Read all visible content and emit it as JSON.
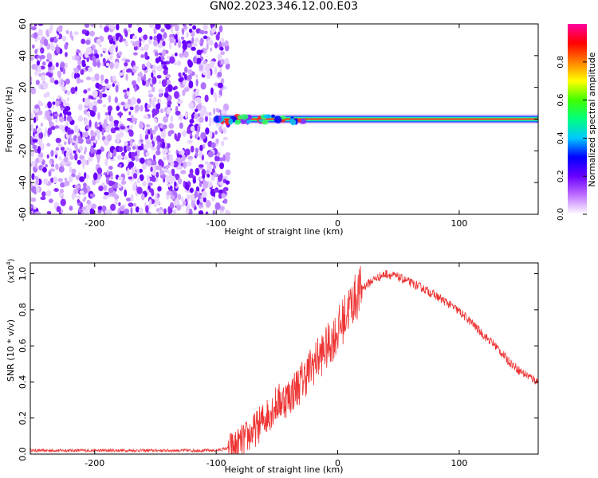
{
  "title": "GN02.2023.346.12.00.E03",
  "chart_data": [
    {
      "type": "heatmap",
      "xlabel": "Height of straight line (km)",
      "ylabel": "Frequency (Hz)",
      "xlim": [
        -253,
        165
      ],
      "ylim": [
        -60,
        60
      ],
      "xticks": [
        -200,
        -100,
        0,
        100
      ],
      "yticks": [
        -60,
        -40,
        -20,
        0,
        20,
        40,
        60
      ],
      "noise_region_x": [
        -253,
        -90
      ],
      "tone_frequency": 0,
      "tone_start_x": -100,
      "colorbar": {
        "label": "Normalized spectral amplitude",
        "range": [
          0,
          1
        ],
        "ticks": [
          0.0,
          0.2,
          0.4,
          0.6,
          0.8
        ],
        "colors": [
          "#ffffff",
          "#c070ff",
          "#6a00ff",
          "#0000ff",
          "#00c8ff",
          "#00ff80",
          "#40ff00",
          "#ffff00",
          "#ff8000",
          "#ff0000",
          "#ff00a0"
        ]
      }
    },
    {
      "type": "line",
      "xlabel": "Height of straight line (km)",
      "ylabel": "SNR (10 * v/v)",
      "y_multiplier": "(x10",
      "y_multiplier_exp": "4",
      "xlim": [
        -253,
        165
      ],
      "ylim": [
        0,
        1.06
      ],
      "xticks": [
        -200,
        -100,
        0,
        100
      ],
      "yticks": [
        0.0,
        0.2,
        0.4,
        0.6,
        0.8,
        1.0
      ],
      "color": "#ee3333",
      "x": [
        -253,
        -200,
        -150,
        -100,
        -85,
        -70,
        -60,
        -50,
        -40,
        -30,
        -20,
        -10,
        0,
        10,
        20,
        30,
        40,
        50,
        60,
        70,
        80,
        90,
        100,
        110,
        120,
        130,
        140,
        150,
        160,
        165
      ],
      "y": [
        0.02,
        0.02,
        0.02,
        0.02,
        0.04,
        0.12,
        0.2,
        0.28,
        0.32,
        0.4,
        0.5,
        0.58,
        0.68,
        0.82,
        0.92,
        0.97,
        1.0,
        0.98,
        0.95,
        0.92,
        0.88,
        0.84,
        0.79,
        0.73,
        0.66,
        0.6,
        0.52,
        0.46,
        0.42,
        0.4
      ]
    }
  ]
}
